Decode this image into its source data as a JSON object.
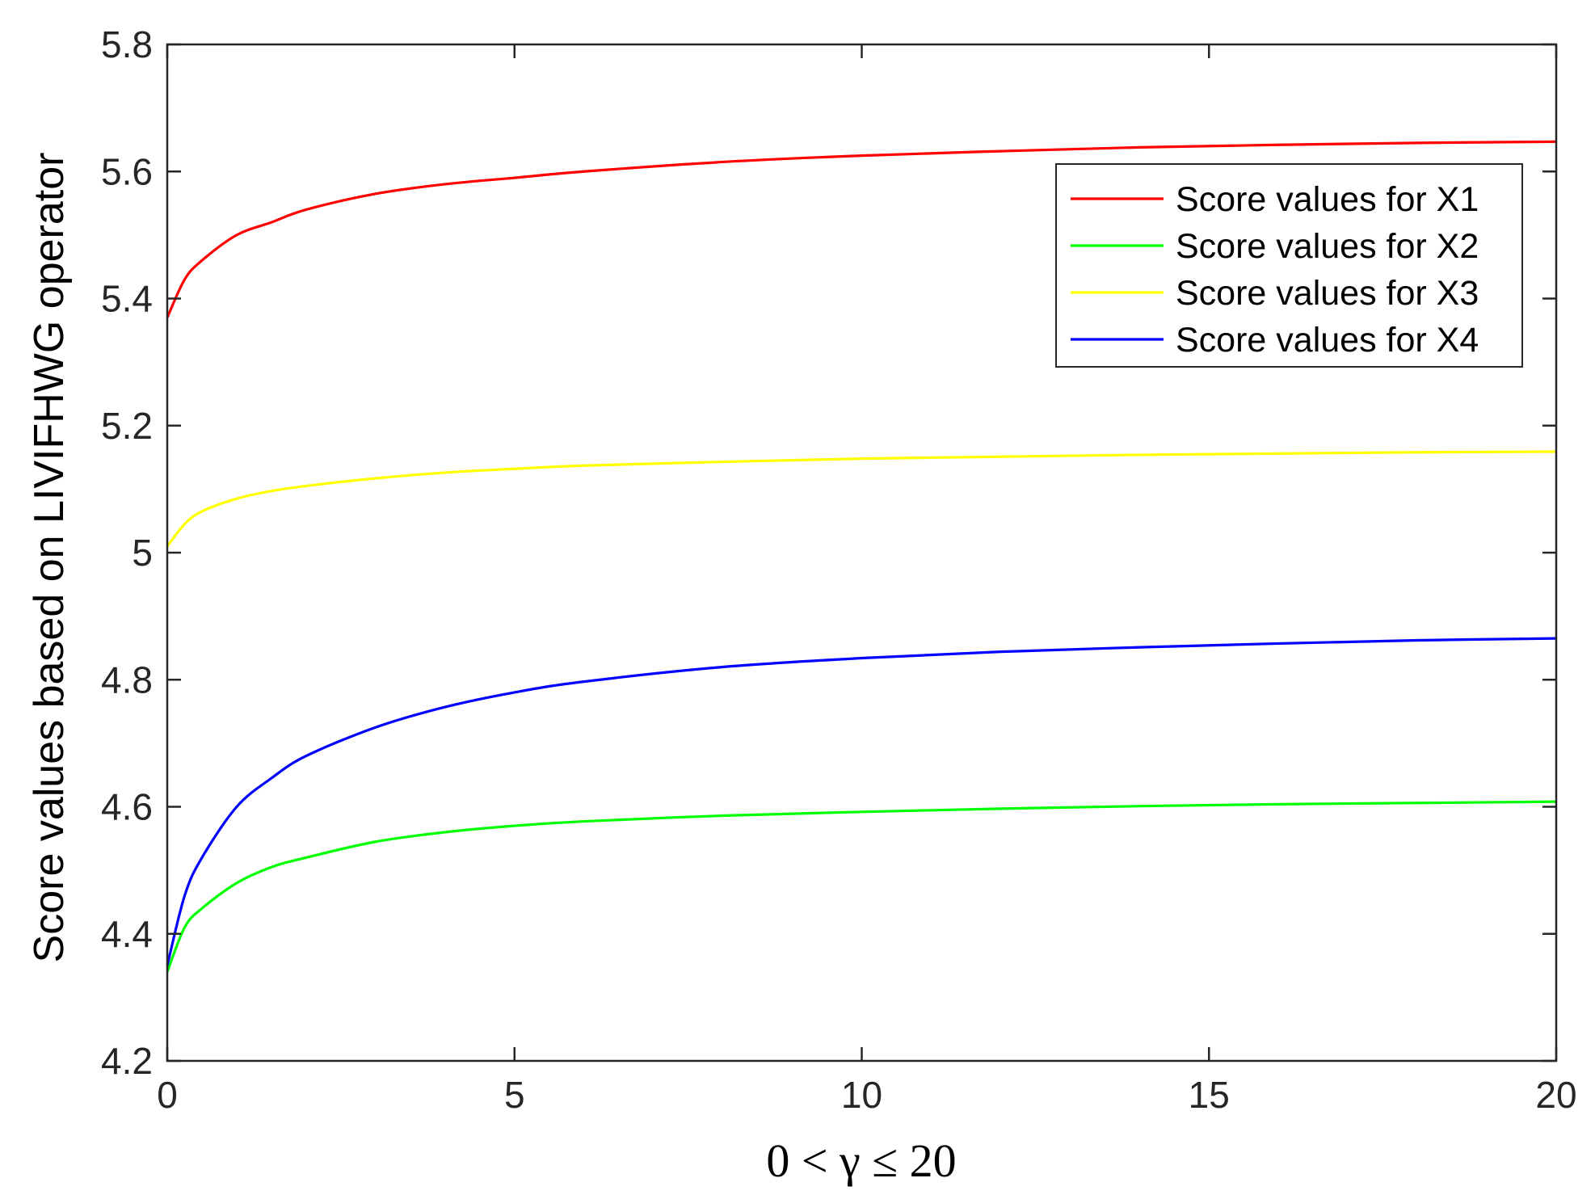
{
  "chart_data": {
    "type": "line",
    "title": "",
    "xlabel": "0 < γ ≤ 20",
    "ylabel": "Score values based on LIVIFHWG operator",
    "xlim": [
      0,
      20
    ],
    "ylim": [
      4.2,
      5.8
    ],
    "xticks": [
      0,
      5,
      10,
      15,
      20
    ],
    "xtick_labels": [
      "0",
      "5",
      "10",
      "15",
      "20"
    ],
    "yticks": [
      4.2,
      4.4,
      4.6,
      4.8,
      5.0,
      5.2,
      5.4,
      5.6,
      5.8
    ],
    "ytick_labels": [
      "4.2",
      "4.4",
      "4.6",
      "4.8",
      "5",
      "5.2",
      "5.4",
      "5.6",
      "5.8"
    ],
    "grid": false,
    "legend_position": "top-right",
    "series": [
      {
        "name": "Score values for X1",
        "color": "#ff0000",
        "x": [
          0,
          0.25,
          0.5,
          1,
          1.5,
          2,
          3,
          4,
          5,
          6,
          8,
          10,
          12,
          14,
          16,
          18,
          20
        ],
        "y": [
          5.37,
          5.43,
          5.46,
          5.5,
          5.52,
          5.54,
          5.565,
          5.58,
          5.59,
          5.6,
          5.615,
          5.625,
          5.632,
          5.638,
          5.642,
          5.645,
          5.647
        ]
      },
      {
        "name": "Score values for X2",
        "color": "#00ff00",
        "x": [
          0,
          0.25,
          0.5,
          1,
          1.5,
          2,
          3,
          4,
          5,
          6,
          8,
          10,
          12,
          14,
          16,
          18,
          20
        ],
        "y": [
          4.34,
          4.41,
          4.44,
          4.48,
          4.505,
          4.52,
          4.545,
          4.56,
          4.57,
          4.577,
          4.586,
          4.592,
          4.597,
          4.601,
          4.604,
          4.606,
          4.608
        ]
      },
      {
        "name": "Score values for X3",
        "color": "#ffff00",
        "x": [
          0,
          0.25,
          0.5,
          1,
          1.5,
          2,
          3,
          4,
          5,
          6,
          8,
          10,
          12,
          14,
          16,
          18,
          20
        ],
        "y": [
          5.01,
          5.045,
          5.065,
          5.085,
          5.097,
          5.105,
          5.117,
          5.126,
          5.132,
          5.137,
          5.143,
          5.148,
          5.151,
          5.154,
          5.156,
          5.158,
          5.159
        ]
      },
      {
        "name": "Score values for X4",
        "color": "#0000ff",
        "x": [
          0,
          0.25,
          0.5,
          1,
          1.5,
          2,
          3,
          4,
          5,
          6,
          8,
          10,
          12,
          14,
          16,
          18,
          20
        ],
        "y": [
          4.35,
          4.46,
          4.52,
          4.6,
          4.645,
          4.68,
          4.725,
          4.757,
          4.78,
          4.797,
          4.82,
          4.834,
          4.844,
          4.851,
          4.857,
          4.862,
          4.865
        ]
      }
    ]
  }
}
